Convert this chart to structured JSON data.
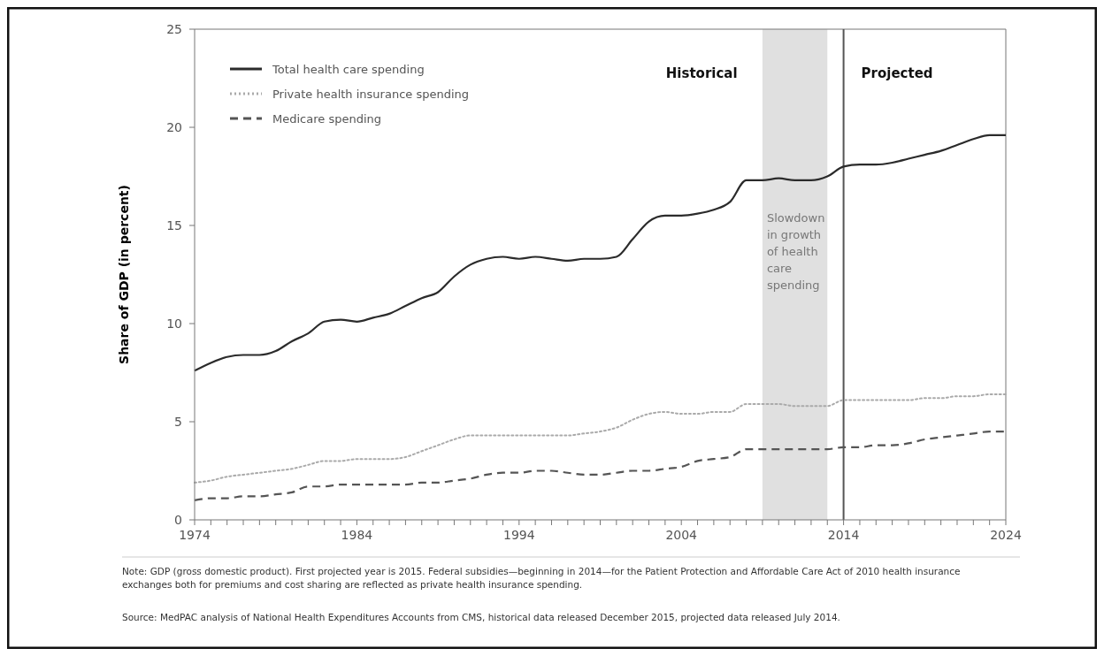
{
  "chart_data": {
    "type": "line",
    "ylabel": "Share of GDP (in percent)",
    "x": [
      1974,
      1975,
      1976,
      1977,
      1978,
      1979,
      1980,
      1981,
      1982,
      1983,
      1984,
      1985,
      1986,
      1987,
      1988,
      1989,
      1990,
      1991,
      1992,
      1993,
      1994,
      1995,
      1996,
      1997,
      1998,
      1999,
      2000,
      2001,
      2002,
      2003,
      2004,
      2005,
      2006,
      2007,
      2008,
      2009,
      2010,
      2011,
      2012,
      2013,
      2014,
      2015,
      2016,
      2017,
      2018,
      2019,
      2020,
      2021,
      2022,
      2023,
      2024
    ],
    "series": [
      {
        "name": "Total health care spending",
        "color": "#2b2b2b",
        "line_style": "solid",
        "values": [
          7.6,
          8.0,
          8.3,
          8.4,
          8.4,
          8.6,
          9.1,
          9.5,
          10.1,
          10.2,
          10.1,
          10.3,
          10.5,
          10.9,
          11.3,
          11.6,
          12.4,
          13.0,
          13.3,
          13.4,
          13.3,
          13.4,
          13.3,
          13.2,
          13.3,
          13.3,
          13.4,
          14.3,
          15.2,
          15.5,
          15.5,
          15.6,
          15.8,
          16.2,
          17.3,
          17.3,
          17.4,
          17.3,
          17.3,
          17.5,
          18.0,
          18.1,
          18.1,
          18.2,
          18.4,
          18.6,
          18.8,
          19.1,
          19.4,
          19.6,
          19.6
        ]
      },
      {
        "name": "Private health insurance spending",
        "color": "#aaaaaa",
        "line_style": "dotted",
        "values": [
          1.9,
          2.0,
          2.2,
          2.3,
          2.4,
          2.5,
          2.6,
          2.8,
          3.0,
          3.0,
          3.1,
          3.1,
          3.1,
          3.2,
          3.5,
          3.8,
          4.1,
          4.3,
          4.3,
          4.3,
          4.3,
          4.3,
          4.3,
          4.3,
          4.4,
          4.5,
          4.7,
          5.1,
          5.4,
          5.5,
          5.4,
          5.4,
          5.5,
          5.5,
          5.9,
          5.9,
          5.9,
          5.8,
          5.8,
          5.8,
          6.1,
          6.1,
          6.1,
          6.1,
          6.1,
          6.2,
          6.2,
          6.3,
          6.3,
          6.4,
          6.4
        ]
      },
      {
        "name": "Medicare spending",
        "color": "#555555",
        "line_style": "dashed",
        "values": [
          1.0,
          1.1,
          1.1,
          1.2,
          1.2,
          1.3,
          1.4,
          1.7,
          1.7,
          1.8,
          1.8,
          1.8,
          1.8,
          1.8,
          1.9,
          1.9,
          2.0,
          2.1,
          2.3,
          2.4,
          2.4,
          2.5,
          2.5,
          2.4,
          2.3,
          2.3,
          2.4,
          2.5,
          2.5,
          2.6,
          2.7,
          3.0,
          3.1,
          3.2,
          3.6,
          3.6,
          3.6,
          3.6,
          3.6,
          3.6,
          3.7,
          3.7,
          3.8,
          3.8,
          3.9,
          4.1,
          4.2,
          4.3,
          4.4,
          4.5,
          4.5
        ]
      }
    ],
    "xlim": [
      1974,
      2024
    ],
    "xticks": [
      1974,
      {
        "value": 1975,
        "label": null
      },
      {
        "value": 1976,
        "label": null
      },
      {
        "value": 1977,
        "label": null
      },
      {
        "value": 1978,
        "label": null
      },
      {
        "value": 1979,
        "label": null
      },
      {
        "value": 1980,
        "label": null
      },
      {
        "value": 1981,
        "label": null
      },
      {
        "value": 1982,
        "label": null
      },
      {
        "value": 1983,
        "label": null
      },
      1984,
      {
        "value": 1985,
        "label": null
      },
      {
        "value": 1986,
        "label": null
      },
      {
        "value": 1987,
        "label": null
      },
      {
        "value": 1988,
        "label": null
      },
      {
        "value": 1989,
        "label": null
      },
      {
        "value": 1990,
        "label": null
      },
      {
        "value": 1991,
        "label": null
      },
      {
        "value": 1992,
        "label": null
      },
      {
        "value": 1993,
        "label": null
      },
      1994,
      {
        "value": 1995,
        "label": null
      },
      {
        "value": 1996,
        "label": null
      },
      {
        "value": 1997,
        "label": null
      },
      {
        "value": 1998,
        "label": null
      },
      {
        "value": 1999,
        "label": null
      },
      {
        "value": 2000,
        "label": null
      },
      {
        "value": 2001,
        "label": null
      },
      {
        "value": 2002,
        "label": null
      },
      {
        "value": 2003,
        "label": null
      },
      2004,
      {
        "value": 2005,
        "label": null
      },
      {
        "value": 2006,
        "label": null
      },
      {
        "value": 2007,
        "label": null
      },
      {
        "value": 2008,
        "label": null
      },
      {
        "value": 2009,
        "label": null
      },
      {
        "value": 2010,
        "label": null
      },
      {
        "value": 2011,
        "label": null
      },
      {
        "value": 2012,
        "label": null
      },
      {
        "value": 2013,
        "label": null
      },
      2014,
      {
        "value": 2015,
        "label": null
      },
      {
        "value": 2016,
        "label": null
      },
      {
        "value": 2017,
        "label": null
      },
      {
        "value": 2018,
        "label": null
      },
      {
        "value": 2019,
        "label": null
      },
      {
        "value": 2020,
        "label": null
      },
      {
        "value": 2021,
        "label": null
      },
      {
        "value": 2022,
        "label": null
      },
      {
        "value": 2023,
        "label": null
      },
      2024
    ],
    "ylim": [
      0,
      25
    ],
    "yticks": [
      0,
      5,
      10,
      15,
      20,
      25
    ],
    "grid": false,
    "legend": "top left",
    "marker": "none",
    "bands": [
      {
        "axis": "x",
        "from": 2009,
        "to": 2013,
        "label": "Slowdown in growth of health care spending",
        "color": "#e0e0e0"
      }
    ],
    "ref_lines": [
      {
        "axis": "x",
        "value": 2014,
        "color": "#555555",
        "line_style": "solid"
      }
    ],
    "annotations": [
      "Historical",
      "Projected",
      "Note:   GDP (gross domestic product). First projected year is 2015. Federal subsidies—beginning in 2014—for the Patient Protection and Affordable Care Act of 2010 health insurance exchanges both for premiums and cost sharing are reflected as private health insurance spending.",
      "Source:  MedPAC analysis of National Health Expenditures Accounts from CMS, historical data released December 2015, projected data released July 2014."
    ]
  }
}
